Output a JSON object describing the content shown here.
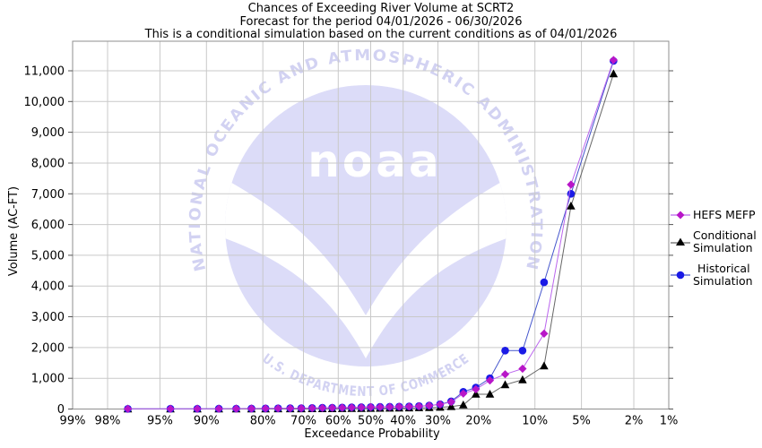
{
  "title": {
    "line1": "Chances of Exceeding River Volume at SCRT2",
    "line2": "Forecast for the period 04/01/2026 - 06/30/2026",
    "line3": "This is a conditional simulation based on the current conditions as of 04/01/2026"
  },
  "watermark": {
    "arc_top": "NATIONAL OCEANIC AND ATMOSPHERIC ADMINISTRATION",
    "center": "noaa",
    "arc_bottom": "U.S. DEPARTMENT OF COMMERCE",
    "circle_color": "#dcdcf8",
    "text_color": "#d2d2f2"
  },
  "legend": {
    "items": [
      {
        "line1": "HEFS MEFP",
        "line2": ""
      },
      {
        "line1": "Conditional",
        "line2": "Simulation"
      },
      {
        "line1": "Historical",
        "line2": "Simulation"
      }
    ]
  },
  "chart_data": {
    "type": "line",
    "title": "Chances of Exceeding River Volume at SCRT2",
    "xlabel": "Exceedance Probability",
    "ylabel": "Volume (AC-FT)",
    "x_scale": "normal-probability (probit)",
    "xlim_percent": [
      99,
      1
    ],
    "ylim": [
      0,
      12000
    ],
    "grid": true,
    "legend_position": "right-outside",
    "x_tick_labels": [
      "99%",
      "98%",
      "95%",
      "90%",
      "80%",
      "70%",
      "60%",
      "50%",
      "40%",
      "30%",
      "20%",
      "10%",
      "5%",
      "2%",
      "1%"
    ],
    "x_tick_values": [
      99,
      98,
      95,
      90,
      80,
      70,
      60,
      50,
      40,
      30,
      20,
      10,
      5,
      2,
      1
    ],
    "y_tick_labels": [
      "0",
      "1,000",
      "2,000",
      "3,000",
      "4,000",
      "5,000",
      "6,000",
      "7,000",
      "8,000",
      "9,000",
      "10,000",
      "11,000"
    ],
    "y_tick_values": [
      0,
      1000,
      2000,
      3000,
      4000,
      5000,
      6000,
      7000,
      8000,
      9000,
      10000,
      11000
    ],
    "exceedance_probability_percent": [
      2.9,
      5.9,
      8.8,
      11.8,
      14.7,
      17.6,
      20.6,
      23.5,
      26.5,
      29.4,
      32.4,
      35.3,
      38.2,
      41.2,
      44.1,
      47.1,
      50.0,
      52.9,
      55.9,
      58.8,
      61.8,
      64.7,
      67.6,
      70.6,
      73.5,
      76.5,
      79.4,
      82.4,
      85.3,
      88.2,
      91.2,
      94.1,
      97.1
    ],
    "series": [
      {
        "id": "hefs-mefp",
        "name": "HEFS MEFP",
        "marker": "diamond",
        "marker_color": "#b816c8",
        "line_color": "#bb66ee",
        "values": [
          11350,
          7300,
          2450,
          1310,
          1130,
          930,
          640,
          500,
          230,
          150,
          110,
          90,
          80,
          75,
          70,
          65,
          60,
          55,
          50,
          45,
          40,
          35,
          30,
          25,
          22,
          20,
          18,
          15,
          12,
          10,
          8,
          6,
          5
        ]
      },
      {
        "id": "conditional-simulation",
        "name": "Conditional Simulation",
        "marker": "triangle",
        "marker_color": "#000000",
        "line_color": "#666666",
        "values": [
          10900,
          6600,
          1400,
          950,
          790,
          480,
          480,
          130,
          80,
          55,
          45,
          40,
          35,
          30,
          25,
          22,
          20,
          18,
          15,
          12,
          10,
          9,
          8,
          7,
          6,
          5,
          4,
          3,
          3,
          2,
          2,
          1,
          1
        ]
      },
      {
        "id": "historical-simulation",
        "name": "Historical Simulation",
        "marker": "circle",
        "marker_color": "#1a1ae6",
        "line_color": "#4455cc",
        "values": [
          11320,
          7000,
          4120,
          1900,
          1900,
          1000,
          700,
          560,
          250,
          155,
          115,
          95,
          85,
          80,
          75,
          70,
          65,
          60,
          55,
          50,
          45,
          40,
          35,
          30,
          27,
          24,
          21,
          18,
          15,
          12,
          10,
          8,
          6
        ]
      }
    ]
  }
}
